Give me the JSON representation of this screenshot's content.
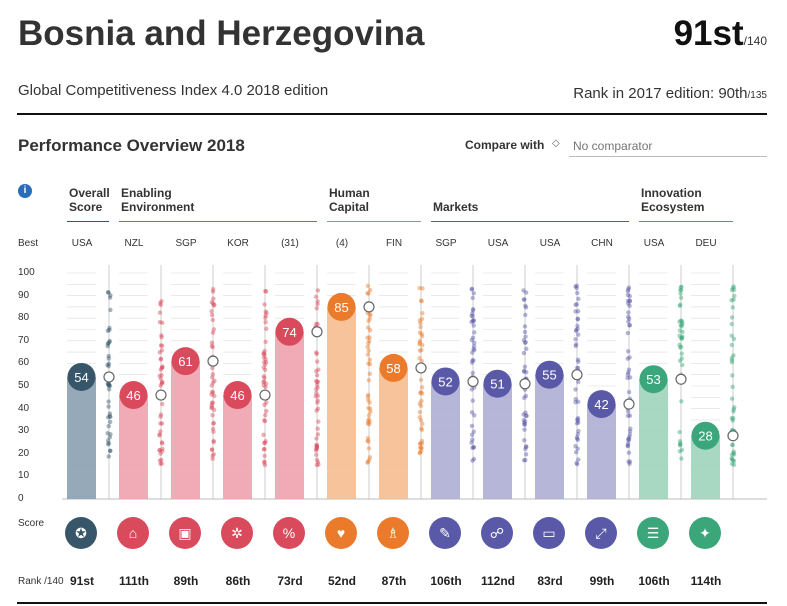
{
  "header": {
    "country": "Bosnia and Herzegovina",
    "rank": "91st",
    "rank_total": "/140",
    "subtitle": "Global Competitiveness Index 4.0 2018 edition",
    "prev_rank_label": "Rank in 2017 edition: 90th",
    "prev_rank_total": "/135"
  },
  "overview": {
    "title": "Performance Overview 2018",
    "compare_label": "Compare with",
    "compare_icon": "diamond-icon",
    "compare_placeholder": "No comparator"
  },
  "labels": {
    "info": "i",
    "best": "Best",
    "score": "Score",
    "rank": "Rank /140"
  },
  "pillar_groups": [
    {
      "label_line1": "Overall",
      "label_line2": "Score",
      "color": "#37566a"
    },
    {
      "label_line1": "Enabling",
      "label_line2": "Environment",
      "color": "#d94a5c"
    },
    {
      "label_line1": "Human",
      "label_line2": "Capital",
      "color": "#ec7a2b"
    },
    {
      "label_line1": "Markets",
      "label_line2": "",
      "color": "#5a59a8"
    },
    {
      "label_line1": "Innovation",
      "label_line2": "Ecosystem",
      "color": "#3aa67a"
    }
  ],
  "ticks": [
    "100",
    "90",
    "80",
    "70",
    "60",
    "50",
    "40",
    "30",
    "20",
    "10",
    "0"
  ],
  "chart_data": {
    "type": "bar",
    "ylim": [
      0,
      100
    ],
    "categories": [
      "Overall Score",
      "Institutions",
      "Infrastructure",
      "ICT adoption",
      "Macroeconomic stability",
      "Health",
      "Skills",
      "Product market",
      "Labour market",
      "Financial system",
      "Market size",
      "Business dynamism",
      "Innovation capability"
    ],
    "values": [
      54,
      46,
      61,
      46,
      74,
      85,
      58,
      52,
      51,
      55,
      42,
      53,
      28
    ],
    "value_labels": [
      "54",
      "46",
      "61",
      "46",
      "74",
      "85",
      "58",
      "52",
      "51",
      "55",
      "42",
      "53",
      "28"
    ],
    "best_performers": [
      "USA",
      "NZL",
      "SGP",
      "KOR",
      "(31)",
      "(4)",
      "FIN",
      "SGP",
      "USA",
      "USA",
      "CHN",
      "USA",
      "DEU"
    ],
    "ranks": [
      "91st",
      "111th",
      "89th",
      "86th",
      "73rd",
      "52nd",
      "87th",
      "106th",
      "112nd",
      "83rd",
      "99th",
      "106th",
      "114th"
    ],
    "groups": [
      0,
      1,
      1,
      1,
      1,
      2,
      2,
      3,
      3,
      3,
      3,
      4,
      4
    ],
    "icons": [
      "award-icon",
      "institution-icon",
      "infrastructure-icon",
      "chip-icon",
      "percent-icon",
      "heart-icon",
      "graduate-icon",
      "tag-icon",
      "people-icon",
      "credit-card-icon",
      "expand-icon",
      "document-icon",
      "lightbulb-icon"
    ],
    "icon_glyphs": [
      "✪",
      "⌂",
      "▣",
      "✲",
      "%",
      "♥",
      "♗",
      "✎",
      "☍",
      "▭",
      "⤢",
      "☰",
      "✦"
    ],
    "colors": {
      "0": {
        "bar": "#8aa0b0",
        "circle": "#37566a",
        "dots": "#37566a"
      },
      "1": {
        "bar": "#f0a2ae",
        "circle": "#d94a5c",
        "dots": "#d94a5c"
      },
      "2": {
        "bar": "#f6bd90",
        "circle": "#ec7a2b",
        "dots": "#ec7a2b"
      },
      "3": {
        "bar": "#aeaed4",
        "circle": "#5a59a8",
        "dots": "#5a59a8"
      },
      "4": {
        "bar": "#9ed3bb",
        "circle": "#3aa67a",
        "dots": "#3aa67a"
      }
    },
    "grid": true
  }
}
